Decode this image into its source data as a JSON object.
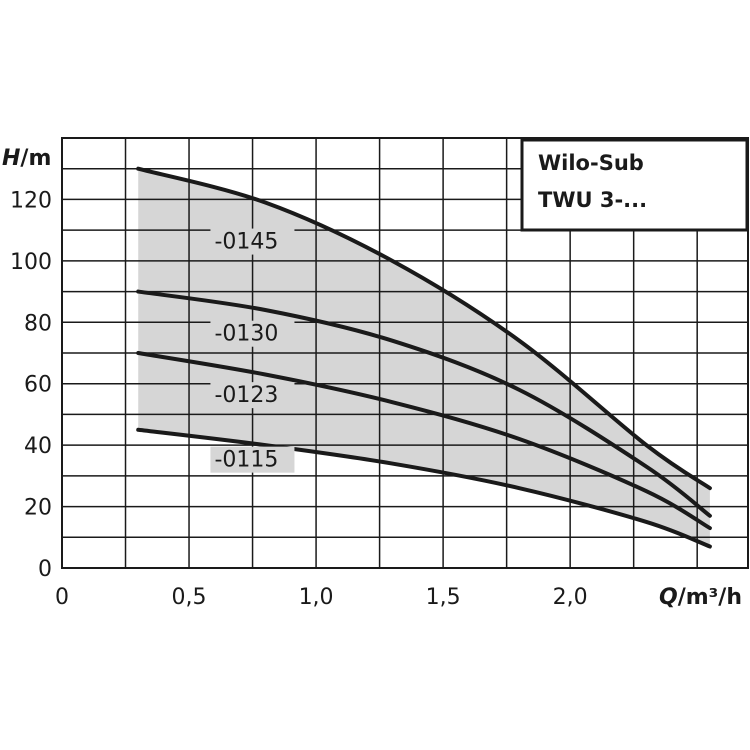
{
  "chart_data": {
    "type": "line",
    "title": [
      "Wilo-Sub",
      "TWU 3-..."
    ],
    "ylabel": {
      "var": "H",
      "unit": "/m"
    },
    "xlabel": {
      "var": "Q",
      "unit": "/m³/h"
    },
    "xlim": [
      0,
      2.7
    ],
    "ylim": [
      0,
      140
    ],
    "xticks": [
      {
        "value": 0,
        "label": "0"
      },
      {
        "value": 0.5,
        "label": "0,5"
      },
      {
        "value": 1.0,
        "label": "1,0"
      },
      {
        "value": 1.5,
        "label": "1,5"
      },
      {
        "value": 2.0,
        "label": "2,0"
      }
    ],
    "yticks": [
      {
        "value": 0,
        "label": "0"
      },
      {
        "value": 20,
        "label": "20"
      },
      {
        "value": 40,
        "label": "40"
      },
      {
        "value": 60,
        "label": "60"
      },
      {
        "value": 80,
        "label": "80"
      },
      {
        "value": 100,
        "label": "100"
      },
      {
        "value": 120,
        "label": "120"
      }
    ],
    "grid": true,
    "series": [
      {
        "name": "-0145",
        "x": [
          0.3,
          0.8,
          1.3,
          1.8,
          2.3,
          2.55
        ],
        "y": [
          130,
          119,
          100,
          74,
          40,
          26
        ],
        "label_at": [
          0.6,
          104
        ]
      },
      {
        "name": "-0130",
        "x": [
          0.3,
          0.8,
          1.3,
          1.8,
          2.3,
          2.55
        ],
        "y": [
          90,
          84,
          74,
          58,
          33,
          17
        ],
        "label_at": [
          0.6,
          74
        ]
      },
      {
        "name": "-0123",
        "x": [
          0.3,
          0.8,
          1.3,
          1.8,
          2.3,
          2.55
        ],
        "y": [
          70,
          63,
          54,
          42,
          25,
          13
        ],
        "label_at": [
          0.6,
          54
        ]
      },
      {
        "name": "-0115",
        "x": [
          0.3,
          0.8,
          1.3,
          1.8,
          2.3,
          2.55
        ],
        "y": [
          45,
          40,
          34,
          26,
          15,
          7
        ],
        "label_at": [
          0.6,
          33
        ]
      }
    ],
    "band_fill": "#d6d6d6",
    "line_color": "#1a1a1a"
  }
}
